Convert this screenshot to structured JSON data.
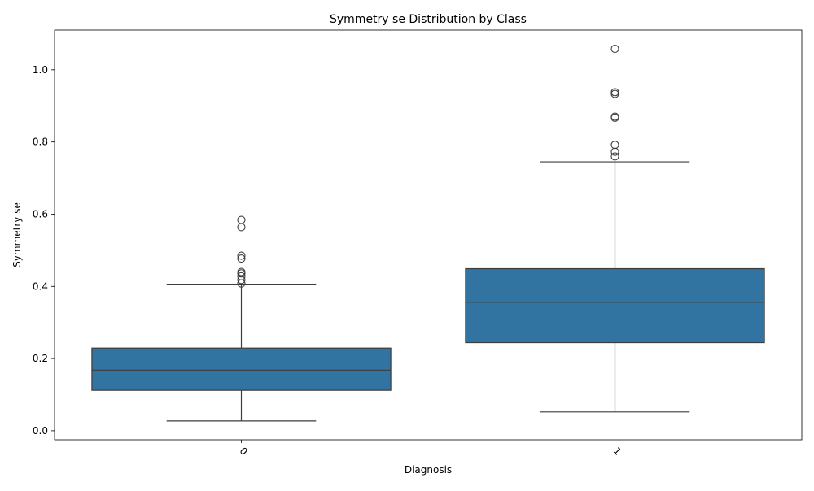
{
  "chart_data": {
    "type": "box",
    "title": "Symmetry se Distribution by Class",
    "xlabel": "Diagnosis",
    "ylabel": "Symmetry se",
    "ylim": [
      -0.025,
      1.11
    ],
    "yticks": [
      0.0,
      0.2,
      0.4,
      0.6,
      0.8,
      1.0
    ],
    "ytick_labels": [
      "0.0",
      "0.2",
      "0.4",
      "0.6",
      "0.8",
      "1.0"
    ],
    "categories": [
      "0",
      "1"
    ],
    "xtick_rotation": 45,
    "box_color": "#3274a1",
    "line_color": "#3d3d3d",
    "boxes": [
      {
        "category": "0",
        "whisker_low": 0.027,
        "q1": 0.112,
        "median": 0.168,
        "q3": 0.229,
        "whisker_high": 0.406,
        "outliers": [
          0.408,
          0.418,
          0.428,
          0.436,
          0.44,
          0.477,
          0.485,
          0.564,
          0.584
        ]
      },
      {
        "category": "1",
        "whisker_low": 0.052,
        "q1": 0.244,
        "median": 0.356,
        "q3": 0.449,
        "whisker_high": 0.745,
        "outliers": [
          0.76,
          0.773,
          0.792,
          0.867,
          0.87,
          0.933,
          0.938,
          1.058
        ]
      }
    ],
    "grid": false,
    "legend": "none"
  }
}
